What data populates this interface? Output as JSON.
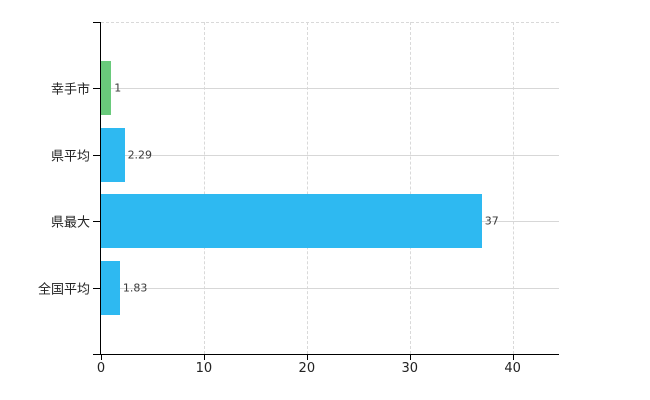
{
  "chart_data": {
    "type": "bar",
    "orientation": "horizontal",
    "title": "",
    "categories": [
      "幸手市",
      "県平均",
      "県最大",
      "全国平均"
    ],
    "values": [
      1,
      2.29,
      37,
      1.83
    ],
    "value_labels": [
      "1",
      "2.29",
      "37",
      "1.83"
    ],
    "bar_colors": [
      "#69ca7b",
      "#2eb9f1",
      "#2eb9f1",
      "#2eb9f1"
    ],
    "xlim": [
      0,
      44.5
    ],
    "x_ticks": [
      0,
      10,
      20,
      30,
      40
    ],
    "x_tick_labels": [
      "0",
      "10",
      "20",
      "30",
      "40"
    ],
    "grid": true,
    "legend": "none",
    "background_color": "#ffffff",
    "axis_color": "#000000",
    "gridline_color": "#d9d9d9"
  }
}
